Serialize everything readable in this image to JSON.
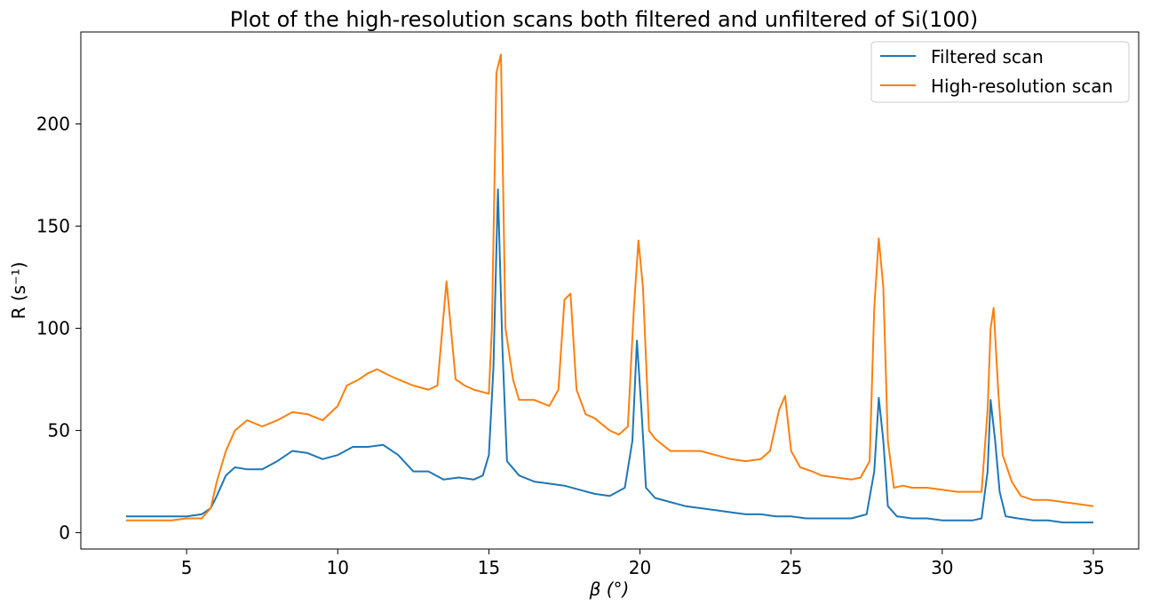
{
  "chart_data": {
    "type": "line",
    "title": "Plot of the high-resolution scans both filtered and unfiltered of Si(100)",
    "xlabel": "β (°)",
    "ylabel": "R (s⁻¹)",
    "xlim": [
      1.5,
      36.5
    ],
    "ylim": [
      -8,
      245
    ],
    "xticks": [
      5,
      10,
      15,
      20,
      25,
      30,
      35
    ],
    "yticks": [
      0,
      50,
      100,
      150,
      200
    ],
    "grid": false,
    "legend": "top-right",
    "series": [
      {
        "name": "Filtered scan",
        "color": "#1f77b4",
        "points": [
          [
            3.0,
            8
          ],
          [
            3.5,
            8
          ],
          [
            4.0,
            8
          ],
          [
            4.5,
            8
          ],
          [
            5.0,
            8
          ],
          [
            5.5,
            9
          ],
          [
            5.8,
            12
          ],
          [
            6.0,
            18
          ],
          [
            6.3,
            28
          ],
          [
            6.6,
            32
          ],
          [
            7.0,
            31
          ],
          [
            7.5,
            31
          ],
          [
            8.0,
            35
          ],
          [
            8.5,
            40
          ],
          [
            9.0,
            39
          ],
          [
            9.5,
            36
          ],
          [
            10.0,
            38
          ],
          [
            10.5,
            42
          ],
          [
            11.0,
            42
          ],
          [
            11.5,
            43
          ],
          [
            12.0,
            38
          ],
          [
            12.5,
            30
          ],
          [
            13.0,
            30
          ],
          [
            13.5,
            26
          ],
          [
            14.0,
            27
          ],
          [
            14.5,
            26
          ],
          [
            14.8,
            28
          ],
          [
            15.0,
            38
          ],
          [
            15.15,
            80
          ],
          [
            15.3,
            168
          ],
          [
            15.45,
            90
          ],
          [
            15.6,
            35
          ],
          [
            16.0,
            28
          ],
          [
            16.5,
            25
          ],
          [
            17.0,
            24
          ],
          [
            17.5,
            23
          ],
          [
            18.0,
            21
          ],
          [
            18.5,
            19
          ],
          [
            19.0,
            18
          ],
          [
            19.5,
            22
          ],
          [
            19.75,
            45
          ],
          [
            19.9,
            94
          ],
          [
            20.05,
            60
          ],
          [
            20.2,
            22
          ],
          [
            20.5,
            17
          ],
          [
            21.0,
            15
          ],
          [
            21.5,
            13
          ],
          [
            22.0,
            12
          ],
          [
            22.5,
            11
          ],
          [
            23.0,
            10
          ],
          [
            23.5,
            9
          ],
          [
            24.0,
            9
          ],
          [
            24.5,
            8
          ],
          [
            25.0,
            8
          ],
          [
            25.5,
            7
          ],
          [
            26.0,
            7
          ],
          [
            26.5,
            7
          ],
          [
            27.0,
            7
          ],
          [
            27.5,
            9
          ],
          [
            27.75,
            30
          ],
          [
            27.9,
            66
          ],
          [
            28.05,
            45
          ],
          [
            28.2,
            13
          ],
          [
            28.5,
            8
          ],
          [
            29.0,
            7
          ],
          [
            29.5,
            7
          ],
          [
            30.0,
            6
          ],
          [
            30.5,
            6
          ],
          [
            31.0,
            6
          ],
          [
            31.3,
            7
          ],
          [
            31.5,
            30
          ],
          [
            31.6,
            65
          ],
          [
            31.75,
            45
          ],
          [
            31.9,
            20
          ],
          [
            32.1,
            8
          ],
          [
            32.5,
            7
          ],
          [
            33.0,
            6
          ],
          [
            33.5,
            6
          ],
          [
            34.0,
            5
          ],
          [
            34.5,
            5
          ],
          [
            35.0,
            5
          ]
        ]
      },
      {
        "name": "High-resolution scan",
        "color": "#ff7f0e",
        "points": [
          [
            3.0,
            6
          ],
          [
            3.5,
            6
          ],
          [
            4.0,
            6
          ],
          [
            4.5,
            6
          ],
          [
            5.0,
            7
          ],
          [
            5.5,
            7
          ],
          [
            5.8,
            12
          ],
          [
            6.0,
            25
          ],
          [
            6.3,
            40
          ],
          [
            6.6,
            50
          ],
          [
            7.0,
            55
          ],
          [
            7.5,
            52
          ],
          [
            8.0,
            55
          ],
          [
            8.5,
            59
          ],
          [
            9.0,
            58
          ],
          [
            9.5,
            55
          ],
          [
            10.0,
            62
          ],
          [
            10.3,
            72
          ],
          [
            10.7,
            75
          ],
          [
            11.0,
            78
          ],
          [
            11.3,
            80
          ],
          [
            11.7,
            77
          ],
          [
            12.0,
            75
          ],
          [
            12.5,
            72
          ],
          [
            13.0,
            70
          ],
          [
            13.3,
            72
          ],
          [
            13.6,
            123
          ],
          [
            13.9,
            75
          ],
          [
            14.2,
            72
          ],
          [
            14.5,
            70
          ],
          [
            15.0,
            68
          ],
          [
            15.1,
            100
          ],
          [
            15.25,
            225
          ],
          [
            15.4,
            234
          ],
          [
            15.55,
            100
          ],
          [
            15.8,
            75
          ],
          [
            16.0,
            65
          ],
          [
            16.5,
            65
          ],
          [
            17.0,
            62
          ],
          [
            17.3,
            70
          ],
          [
            17.5,
            114
          ],
          [
            17.7,
            117
          ],
          [
            17.9,
            70
          ],
          [
            18.2,
            58
          ],
          [
            18.5,
            56
          ],
          [
            19.0,
            50
          ],
          [
            19.3,
            48
          ],
          [
            19.6,
            52
          ],
          [
            19.8,
            110
          ],
          [
            19.95,
            143
          ],
          [
            20.1,
            120
          ],
          [
            20.3,
            50
          ],
          [
            20.5,
            46
          ],
          [
            21.0,
            40
          ],
          [
            21.5,
            40
          ],
          [
            22.0,
            40
          ],
          [
            22.5,
            38
          ],
          [
            23.0,
            36
          ],
          [
            23.5,
            35
          ],
          [
            24.0,
            36
          ],
          [
            24.3,
            40
          ],
          [
            24.6,
            60
          ],
          [
            24.8,
            67
          ],
          [
            25.0,
            40
          ],
          [
            25.3,
            32
          ],
          [
            25.7,
            30
          ],
          [
            26.0,
            28
          ],
          [
            26.5,
            27
          ],
          [
            27.0,
            26
          ],
          [
            27.3,
            27
          ],
          [
            27.6,
            35
          ],
          [
            27.75,
            110
          ],
          [
            27.9,
            144
          ],
          [
            28.05,
            120
          ],
          [
            28.2,
            45
          ],
          [
            28.4,
            22
          ],
          [
            28.7,
            23
          ],
          [
            29.0,
            22
          ],
          [
            29.5,
            22
          ],
          [
            30.0,
            21
          ],
          [
            30.5,
            20
          ],
          [
            31.0,
            20
          ],
          [
            31.3,
            20
          ],
          [
            31.5,
            60
          ],
          [
            31.6,
            100
          ],
          [
            31.7,
            110
          ],
          [
            31.85,
            70
          ],
          [
            32.0,
            38
          ],
          [
            32.3,
            25
          ],
          [
            32.6,
            18
          ],
          [
            33.0,
            16
          ],
          [
            33.5,
            16
          ],
          [
            34.0,
            15
          ],
          [
            34.5,
            14
          ],
          [
            35.0,
            13
          ]
        ]
      }
    ]
  }
}
